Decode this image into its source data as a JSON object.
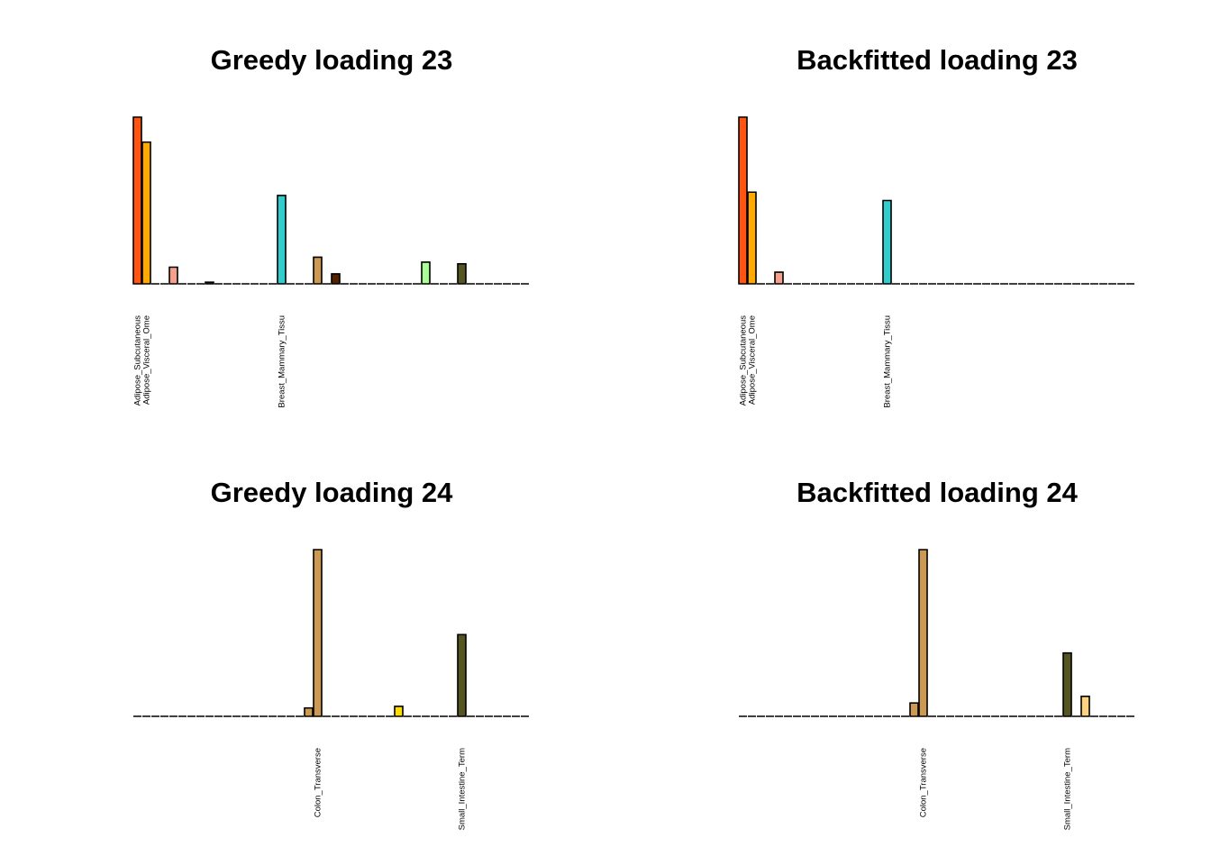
{
  "chart_data": [
    {
      "type": "bar",
      "title": "Greedy loading 23",
      "categories": [
        "Adipose_Subcutaneous",
        "Adipose_Visceral_Ome",
        null,
        null,
        null,
        null,
        null,
        null,
        null,
        null,
        null,
        null,
        null,
        null,
        null,
        null,
        "Breast_Mammary_Tissu",
        null,
        null,
        null,
        null,
        null,
        null,
        null,
        null,
        null,
        null,
        null,
        null,
        null,
        null,
        null,
        null,
        null,
        null,
        null,
        null,
        null,
        null,
        null,
        null,
        null,
        null,
        null
      ],
      "values": [
        1,
        0.85,
        0,
        0,
        0.1,
        0,
        0,
        0,
        0.01,
        0,
        0,
        0,
        0,
        0,
        0,
        0,
        0.53,
        0,
        0,
        0,
        0.16,
        0,
        0.06,
        0,
        0,
        0,
        0,
        0,
        0,
        0,
        0,
        0,
        0.13,
        0,
        0,
        0,
        0.12,
        0,
        0,
        0,
        0,
        0,
        0,
        0
      ],
      "colors": [
        "#ff5511",
        "#ffaa00",
        null,
        null,
        "#f4a08c",
        null,
        null,
        null,
        "#333333",
        null,
        null,
        null,
        null,
        null,
        null,
        null,
        "#33cccc",
        null,
        null,
        "#cc9955",
        "#cc9955",
        null,
        "#552200",
        null,
        null,
        null,
        null,
        null,
        null,
        "#ffdd00",
        null,
        null,
        "#aaff99",
        null,
        null,
        null,
        "#555522",
        null,
        "#ffd27f",
        null,
        null,
        null,
        null,
        null
      ],
      "ylim": [
        0,
        1
      ]
    },
    {
      "type": "bar",
      "title": "Backfitted loading 23",
      "categories": [
        "Adipose_Subcutaneous",
        "Adipose_Visceral_Ome",
        null,
        null,
        null,
        null,
        null,
        null,
        null,
        null,
        null,
        null,
        null,
        null,
        null,
        null,
        "Breast_Mammary_Tissu",
        null,
        null,
        null,
        null,
        null,
        null,
        null,
        null,
        null,
        null,
        null,
        null,
        null,
        null,
        null,
        null,
        null,
        null,
        null,
        null,
        null,
        null,
        null,
        null,
        null,
        null,
        null
      ],
      "values": [
        1,
        0.55,
        0,
        0,
        0.07,
        0,
        0,
        0,
        0,
        0,
        0,
        0,
        0,
        0,
        0,
        0,
        0.5,
        0,
        0,
        0,
        0,
        0,
        0,
        0,
        0,
        0,
        0,
        0,
        0,
        0,
        0,
        0,
        0,
        0,
        0,
        0,
        0,
        0,
        0,
        0,
        0,
        0,
        0,
        0
      ],
      "colors": [
        "#ff5511",
        "#ffaa00",
        null,
        null,
        "#f4a08c",
        null,
        null,
        null,
        "#333333",
        null,
        null,
        null,
        null,
        null,
        null,
        null,
        "#33cccc",
        null,
        null,
        "#cc9955",
        "#cc9955",
        null,
        "#552200",
        null,
        null,
        null,
        null,
        null,
        null,
        "#ffdd00",
        null,
        null,
        "#aaff99",
        null,
        null,
        null,
        "#555522",
        null,
        "#ffd27f",
        null,
        null,
        null,
        null,
        null
      ],
      "ylim": [
        0,
        1
      ]
    },
    {
      "type": "bar",
      "title": "Greedy loading 24",
      "categories": [
        null,
        null,
        null,
        null,
        null,
        null,
        null,
        null,
        null,
        null,
        null,
        null,
        null,
        null,
        null,
        null,
        null,
        null,
        null,
        null,
        "Colon_Transverse",
        null,
        null,
        null,
        null,
        null,
        null,
        null,
        null,
        null,
        null,
        null,
        null,
        null,
        null,
        null,
        "Small_Intestine_Term",
        null,
        null,
        null,
        null,
        null,
        null,
        null
      ],
      "values": [
        0,
        0,
        0,
        0,
        0,
        0,
        0,
        0,
        0,
        0,
        0,
        0,
        0,
        0,
        0,
        0,
        0,
        0,
        0,
        0.05,
        1,
        0,
        0,
        0,
        0,
        0,
        0,
        0,
        0,
        0.06,
        0,
        0,
        0,
        0,
        0,
        0,
        0.49,
        0,
        0,
        0,
        0,
        0,
        0,
        0
      ],
      "colors": [
        "#ff5511",
        "#ffaa00",
        null,
        null,
        "#f4a08c",
        null,
        null,
        null,
        "#333333",
        null,
        null,
        null,
        null,
        null,
        null,
        null,
        "#33cccc",
        null,
        null,
        "#cc9955",
        "#cc9955",
        null,
        "#552200",
        null,
        null,
        null,
        null,
        null,
        null,
        "#ffdd00",
        null,
        null,
        "#aaff99",
        null,
        null,
        null,
        "#555522",
        null,
        "#ffd27f",
        null,
        null,
        null,
        null,
        null
      ],
      "ylim": [
        0,
        1
      ]
    },
    {
      "type": "bar",
      "title": "Backfitted loading 24",
      "categories": [
        null,
        null,
        null,
        null,
        null,
        null,
        null,
        null,
        null,
        null,
        null,
        null,
        null,
        null,
        null,
        null,
        null,
        null,
        null,
        null,
        "Colon_Transverse",
        null,
        null,
        null,
        null,
        null,
        null,
        null,
        null,
        null,
        null,
        null,
        null,
        null,
        null,
        null,
        "Small_Intestine_Term",
        null,
        null,
        null,
        null,
        null,
        null,
        null
      ],
      "values": [
        0,
        0,
        0,
        0,
        0,
        0,
        0,
        0,
        0,
        0,
        0,
        0,
        0,
        0,
        0,
        0,
        0,
        0,
        0,
        0.08,
        1,
        0,
        0,
        0,
        0,
        0,
        0,
        0,
        0,
        0,
        0,
        0,
        0,
        0,
        0,
        0,
        0.38,
        0,
        0.12,
        0,
        0,
        0,
        0,
        0
      ],
      "colors": [
        "#ff5511",
        "#ffaa00",
        null,
        null,
        "#f4a08c",
        null,
        null,
        null,
        "#333333",
        null,
        null,
        null,
        null,
        null,
        null,
        null,
        "#33cccc",
        null,
        null,
        "#cc9955",
        "#cc9955",
        null,
        "#552200",
        null,
        null,
        null,
        null,
        null,
        null,
        "#ffdd00",
        null,
        null,
        "#aaff99",
        null,
        null,
        null,
        "#555522",
        null,
        "#ffd27f",
        null,
        null,
        null,
        null,
        null
      ],
      "ylim": [
        0,
        1
      ]
    }
  ]
}
